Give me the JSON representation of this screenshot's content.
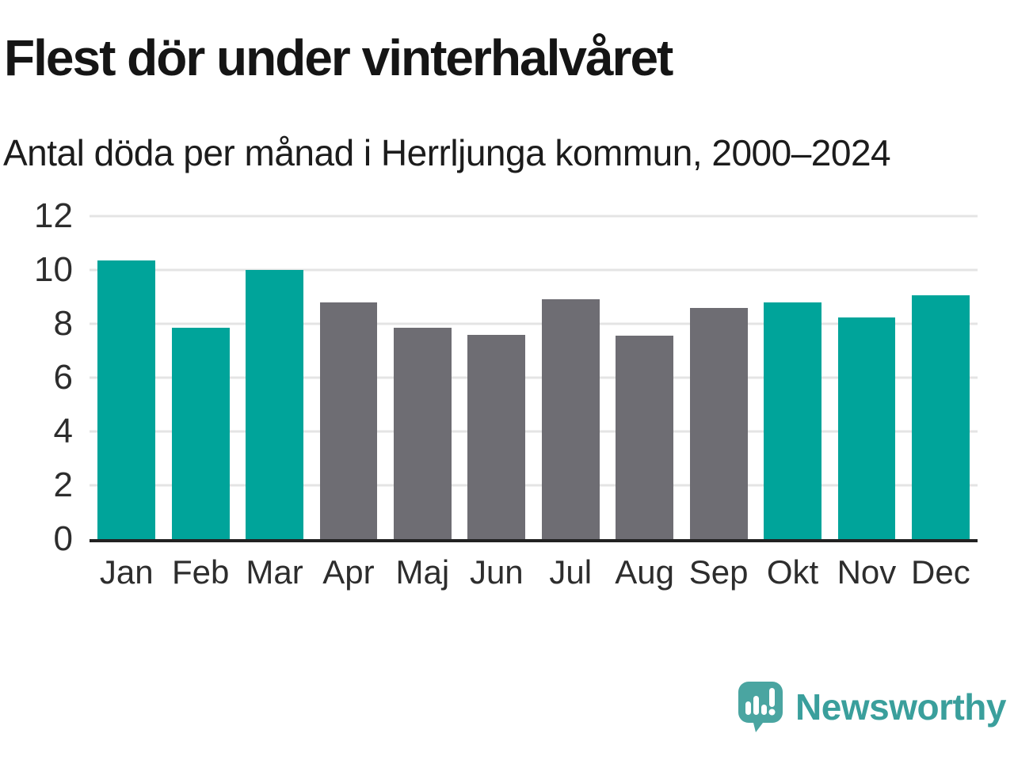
{
  "header": {
    "title": "Flest dör under vinterhalvåret",
    "subtitle": "Antal döda per månad i Herrljunga kommun, 2000–2024"
  },
  "chart_data": {
    "type": "bar",
    "title": "Flest dör under vinterhalvåret",
    "subtitle": "Antal döda per månad i Herrljunga kommun, 2000–2024",
    "categories": [
      "Jan",
      "Feb",
      "Mar",
      "Apr",
      "Maj",
      "Jun",
      "Jul",
      "Aug",
      "Sep",
      "Okt",
      "Nov",
      "Dec"
    ],
    "values": [
      10.35,
      7.85,
      10.0,
      8.8,
      7.85,
      7.6,
      8.9,
      7.55,
      8.6,
      8.8,
      8.25,
      9.05
    ],
    "highlighted_categories": [
      "Jan",
      "Feb",
      "Mar",
      "Okt",
      "Nov",
      "Dec"
    ],
    "highlight_color": "#00a49a",
    "default_color": "#6e6d73",
    "xlabel": "",
    "ylabel": "",
    "ylim": [
      0,
      12
    ],
    "yticks": [
      0,
      2,
      4,
      6,
      8,
      10,
      12
    ],
    "grid": true,
    "legend_position": "none",
    "gridline_color": "#e4e4e4",
    "axis_color": "#222222"
  },
  "branding": {
    "name": "Newsworthy",
    "logo_color": "#4aa5a1",
    "logo_glyph_color": "#ffffff",
    "text_color": "#3a9f9c"
  }
}
